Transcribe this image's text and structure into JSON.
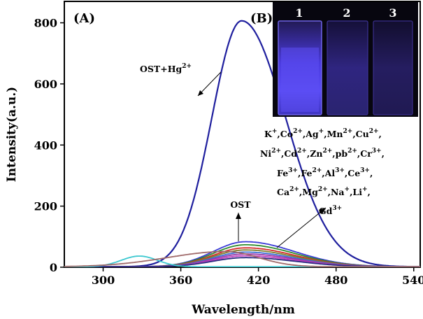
{
  "chart_data": {
    "type": "line",
    "xlabel": "Wavelength/nm",
    "ylabel": "Intensity(a.u.)",
    "xlim": [
      270,
      545
    ],
    "ylim": [
      0,
      870
    ],
    "xticks": [
      300,
      360,
      420,
      480,
      540
    ],
    "yticks": [
      0,
      200,
      400,
      600,
      800
    ],
    "panel_a": "(A)",
    "panel_b": "(B)",
    "series": [
      {
        "name": "OST+Hg2+",
        "color": "#1f1f9e",
        "peak_x": 407,
        "peak_y": 805,
        "width_left": 23,
        "width_right": 34
      },
      {
        "name": "OST",
        "color": "#3a3ad6",
        "peak_x": 410,
        "peak_y": 82,
        "width_left": 25,
        "width_right": 38
      },
      {
        "name": "ion-green",
        "color": "#2e8b2e",
        "peak_x": 410,
        "peak_y": 72,
        "width_left": 25,
        "width_right": 38
      },
      {
        "name": "ion-red",
        "color": "#d42a2a",
        "peak_x": 410,
        "peak_y": 62,
        "width_left": 25,
        "width_right": 38
      },
      {
        "name": "ion-olive",
        "color": "#7f7f2e",
        "peak_x": 410,
        "peak_y": 55,
        "width_left": 25,
        "width_right": 38
      },
      {
        "name": "ion-blue",
        "color": "#3a6fd6",
        "peak_x": 410,
        "peak_y": 48,
        "width_left": 25,
        "width_right": 38
      },
      {
        "name": "ion-purple",
        "color": "#9a3aa8",
        "peak_x": 410,
        "peak_y": 42,
        "width_left": 25,
        "width_right": 38
      },
      {
        "name": "ion-magenta",
        "color": "#c040c0",
        "peak_x": 410,
        "peak_y": 36,
        "width_left": 25,
        "width_right": 38
      },
      {
        "name": "ion-navy",
        "color": "#2a2a80",
        "peak_x": 410,
        "peak_y": 30,
        "width_left": 25,
        "width_right": 38
      },
      {
        "name": "scatter-cyan",
        "color": "#3cc8d0",
        "peak_x": 328,
        "peak_y": 35,
        "width_left": 14,
        "width_right": 14
      },
      {
        "name": "scatter-brown",
        "color": "#a06a6a",
        "peak_x": 395,
        "peak_y": 50,
        "width_left": 45,
        "width_right": 25
      }
    ],
    "annotations": {
      "hg_label": "OST+Hg",
      "hg_sup": "2+",
      "ost_label": "OST",
      "ion_lines": [
        [
          {
            "t": "K",
            "s": "+"
          },
          {
            "t": ",Co",
            "s": "2+"
          },
          {
            "t": ",Ag",
            "s": "+"
          },
          {
            "t": ",Mn",
            "s": "2+"
          },
          {
            "t": ",Cu",
            "s": "2+"
          },
          {
            "t": ",",
            "s": ""
          }
        ],
        [
          {
            "t": "Ni",
            "s": "2+"
          },
          {
            "t": ",Cd",
            "s": "2+"
          },
          {
            "t": ",Zn",
            "s": "2+"
          },
          {
            "t": ",pb",
            "s": "2+"
          },
          {
            "t": ",Cr",
            "s": "3+"
          },
          {
            "t": ",",
            "s": ""
          }
        ],
        [
          {
            "t": "Fe",
            "s": "3+"
          },
          {
            "t": ",Fe",
            "s": "2+"
          },
          {
            "t": ",Al",
            "s": "3+"
          },
          {
            "t": ",Ce",
            "s": "3+"
          },
          {
            "t": ",",
            "s": ""
          }
        ],
        [
          {
            "t": "Ca",
            "s": "2+"
          },
          {
            "t": ",Mg",
            "s": "2+"
          },
          {
            "t": ",Na",
            "s": "+"
          },
          {
            "t": ",Li",
            "s": "+"
          },
          {
            "t": ",",
            "s": ""
          }
        ],
        [
          {
            "t": "Gd",
            "s": "3+"
          }
        ]
      ]
    },
    "inset": {
      "cuvette_labels": [
        "1",
        "2",
        "3"
      ]
    }
  }
}
